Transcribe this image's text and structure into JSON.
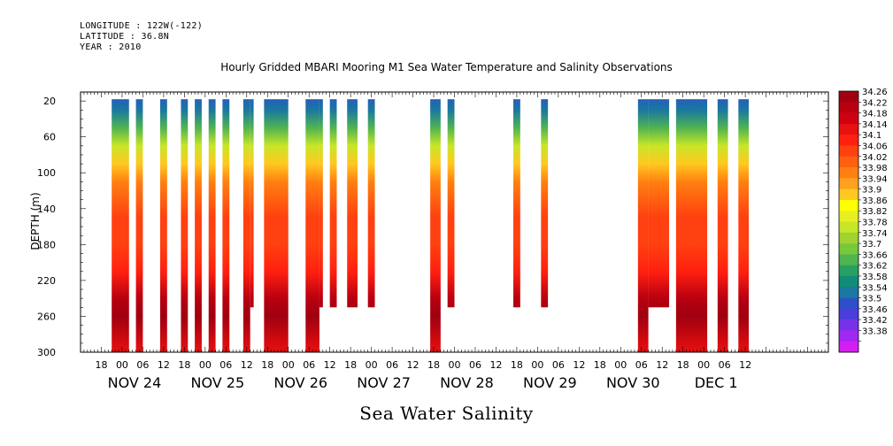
{
  "header": {
    "longitude": "LONGITUDE : 122W(-122)",
    "latitude": "LATITUDE : 36.8N",
    "year": "YEAR : 2010"
  },
  "chart_data": {
    "type": "heatmap",
    "title": "Hourly Gridded MBARI Mooring M1 Sea Water Temperature and Salinity Observations",
    "subtitle": "Sea Water Salinity",
    "xlabel": "",
    "ylabel": "DEPTH (m)",
    "x_unit": "hours since 2010-11-24 00:00",
    "xlim": [
      -12,
      204
    ],
    "ylim": [
      300,
      10
    ],
    "y_ticks": [
      20,
      60,
      100,
      140,
      180,
      220,
      260,
      300
    ],
    "x_hour_ticks": [
      "18",
      "00",
      "06",
      "12",
      "18",
      "00",
      "06",
      "12",
      "18",
      "00",
      "06",
      "12",
      "18",
      "00",
      "06",
      "12",
      "18",
      "00",
      "06",
      "12",
      "18",
      "00",
      "06",
      "12",
      "18",
      "00",
      "06",
      "12",
      "18",
      "00",
      "06",
      "12"
    ],
    "date_labels": [
      "NOV 24",
      "NOV 25",
      "NOV 26",
      "NOV 27",
      "NOV 28",
      "NOV 29",
      "NOV 30",
      "DEC  1"
    ],
    "colorbar": {
      "levels": [
        "34.26",
        "34.22",
        "34.18",
        "34.14",
        "34.1",
        "34.06",
        "34.02",
        "33.98",
        "33.94",
        "33.9",
        "33.86",
        "33.82",
        "33.78",
        "33.74",
        "33.7",
        "33.66",
        "33.62",
        "33.58",
        "33.54",
        "33.5",
        "33.46",
        "33.42",
        "33.38"
      ],
      "colors": [
        "#a00010",
        "#b80010",
        "#d00010",
        "#e81010",
        "#ff2010",
        "#ff4010",
        "#ff6010",
        "#ff8010",
        "#ffa020",
        "#ffc820",
        "#ffff00",
        "#e6f020",
        "#c8e628",
        "#a0d230",
        "#78c83c",
        "#50b450",
        "#28a064",
        "#108c78",
        "#1a78a0",
        "#2d50c8",
        "#4c3cdc",
        "#7832e6",
        "#a028f0",
        "#d21ef0"
      ]
    },
    "segments": [
      {
        "x0": -3,
        "x1": 2,
        "ymax": 300
      },
      {
        "x0": 4,
        "x1": 6,
        "ymax": 300
      },
      {
        "x0": 11,
        "x1": 13,
        "ymax": 300
      },
      {
        "x0": 17,
        "x1": 19,
        "ymax": 300
      },
      {
        "x0": 21,
        "x1": 23,
        "ymax": 300
      },
      {
        "x0": 25,
        "x1": 27,
        "ymax": 300
      },
      {
        "x0": 29,
        "x1": 31,
        "ymax": 300
      },
      {
        "x0": 35,
        "x1": 37,
        "ymax": 300
      },
      {
        "x0": 37,
        "x1": 38,
        "ymax": 250
      },
      {
        "x0": 41,
        "x1": 48,
        "ymax": 300
      },
      {
        "x0": 53,
        "x1": 57,
        "ymax": 300
      },
      {
        "x0": 57,
        "x1": 58,
        "ymax": 250
      },
      {
        "x0": 60,
        "x1": 62,
        "ymax": 250
      },
      {
        "x0": 65,
        "x1": 68,
        "ymax": 250
      },
      {
        "x0": 71,
        "x1": 73,
        "ymax": 250
      },
      {
        "x0": 89,
        "x1": 92,
        "ymax": 300
      },
      {
        "x0": 94,
        "x1": 96,
        "ymax": 250
      },
      {
        "x0": 113,
        "x1": 115,
        "ymax": 250
      },
      {
        "x0": 121,
        "x1": 123,
        "ymax": 250
      },
      {
        "x0": 149,
        "x1": 152,
        "ymax": 300
      },
      {
        "x0": 152,
        "x1": 158,
        "ymax": 250
      },
      {
        "x0": 160,
        "x1": 169,
        "ymax": 300
      },
      {
        "x0": 172,
        "x1": 175,
        "ymax": 300
      },
      {
        "x0": 178,
        "x1": 181,
        "ymax": 300
      }
    ],
    "profile": [
      {
        "depth": 10,
        "value": 33.5
      },
      {
        "depth": 30,
        "value": 33.56
      },
      {
        "depth": 50,
        "value": 33.66
      },
      {
        "depth": 70,
        "value": 33.8
      },
      {
        "depth": 90,
        "value": 33.92
      },
      {
        "depth": 110,
        "value": 33.98
      },
      {
        "depth": 130,
        "value": 34.02
      },
      {
        "depth": 150,
        "value": 34.06
      },
      {
        "depth": 180,
        "value": 34.08
      },
      {
        "depth": 210,
        "value": 34.12
      },
      {
        "depth": 240,
        "value": 34.22
      },
      {
        "depth": 260,
        "value": 34.26
      },
      {
        "depth": 300,
        "value": 34.16
      }
    ]
  }
}
